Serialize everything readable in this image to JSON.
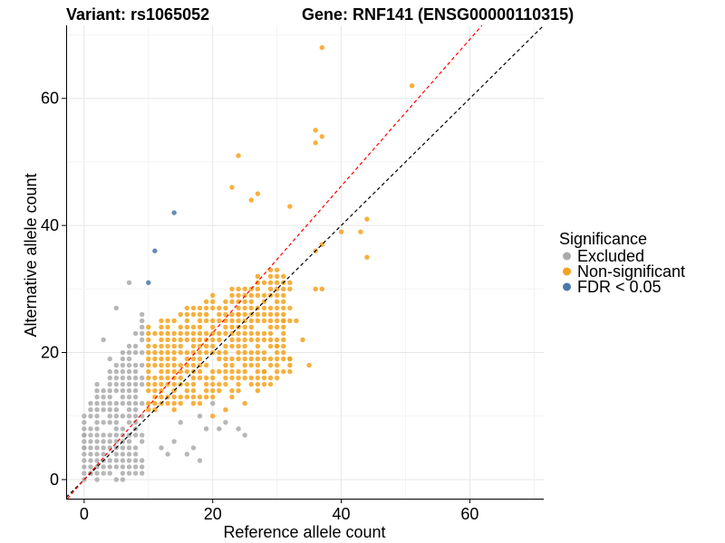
{
  "chart_data": {
    "type": "scatter",
    "titles": {
      "variant": "Variant: rs1065052",
      "gene": "Gene: RNF141 (ENSG00000110315)"
    },
    "xlabel": "Reference allele count",
    "ylabel": "Alternative allele count",
    "xlim": [
      -2.8,
      71.5
    ],
    "ylim": [
      -3.0,
      71.5
    ],
    "xticks": [
      0,
      20,
      40,
      60
    ],
    "yticks": [
      0,
      20,
      40,
      60
    ],
    "grid": true,
    "legend": {
      "title": "Significance",
      "placement": "right",
      "entries": [
        {
          "label": "Excluded",
          "color": "#aaaaaa"
        },
        {
          "label": "Non-significant",
          "color": "#f5a21c"
        },
        {
          "label": "FDR < 0.05",
          "color": "#4a78a8"
        }
      ]
    },
    "reference_lines": [
      {
        "name": "y = x",
        "slope": 1.0,
        "intercept": 0,
        "color": "#000000",
        "dash": true
      },
      {
        "name": "fitted",
        "slope": 1.155,
        "intercept": 0,
        "color": "#ff0000",
        "dash": true
      }
    ],
    "series": [
      {
        "name": "FDR < 0.05",
        "color": "#4a78a8",
        "points": [
          [
            14,
            42
          ],
          [
            11,
            36
          ],
          [
            10,
            31
          ]
        ]
      },
      {
        "name": "Non-significant (sparse)",
        "color": "#f5a21c",
        "points": [
          [
            37,
            68
          ],
          [
            51,
            62
          ],
          [
            36,
            55
          ],
          [
            36,
            53
          ],
          [
            37,
            54
          ],
          [
            24,
            51
          ],
          [
            23,
            46
          ],
          [
            27,
            45
          ],
          [
            26,
            44
          ],
          [
            32,
            43
          ],
          [
            44,
            41
          ],
          [
            43,
            39
          ],
          [
            40,
            39
          ],
          [
            44,
            35
          ],
          [
            37,
            37
          ],
          [
            36,
            36
          ],
          [
            37,
            30
          ],
          [
            36,
            30
          ],
          [
            35,
            18
          ],
          [
            31,
            25
          ],
          [
            33,
            25
          ],
          [
            34,
            22
          ],
          [
            30,
            21
          ],
          [
            32,
            19
          ],
          [
            28,
            17
          ],
          [
            29,
            15
          ],
          [
            23,
            13
          ],
          [
            25,
            12
          ],
          [
            27,
            14
          ],
          [
            20,
            10
          ],
          [
            22,
            11
          ],
          [
            24,
            26
          ],
          [
            22,
            28
          ]
        ]
      },
      {
        "name": "Excluded (sparse)",
        "color": "#aaaaaa",
        "points": [
          [
            7,
            31
          ],
          [
            5,
            27
          ],
          [
            3,
            22
          ],
          [
            4,
            19
          ],
          [
            2,
            15
          ],
          [
            1,
            12
          ],
          [
            0,
            7
          ],
          [
            0,
            5
          ],
          [
            1,
            1
          ],
          [
            2,
            0
          ],
          [
            12,
            5
          ],
          [
            14,
            6
          ],
          [
            13,
            4
          ],
          [
            16,
            4
          ],
          [
            17,
            5
          ],
          [
            18,
            3
          ],
          [
            21,
            8
          ],
          [
            24,
            8
          ],
          [
            25,
            7
          ],
          [
            18,
            10
          ],
          [
            20,
            12
          ],
          [
            22,
            9
          ],
          [
            15,
            9
          ],
          [
            19,
            8
          ]
        ]
      }
    ],
    "density_regions": [
      {
        "series": "Excluded",
        "color": "#aaaaaa",
        "x": [
          0,
          9
        ],
        "y_upper_at_x0": 10,
        "y_upper_slope": 1.75,
        "y_lower_at_x0": 0,
        "y_lower_slope": 0.05
      },
      {
        "series": "Non-significant",
        "color": "#f5a21c",
        "x": [
          10,
          32
        ],
        "y_upper_at_x0": 24,
        "y_upper_slope": 0.45,
        "y_lower_at_x0": 10,
        "y_lower_slope": 0.3
      }
    ]
  }
}
